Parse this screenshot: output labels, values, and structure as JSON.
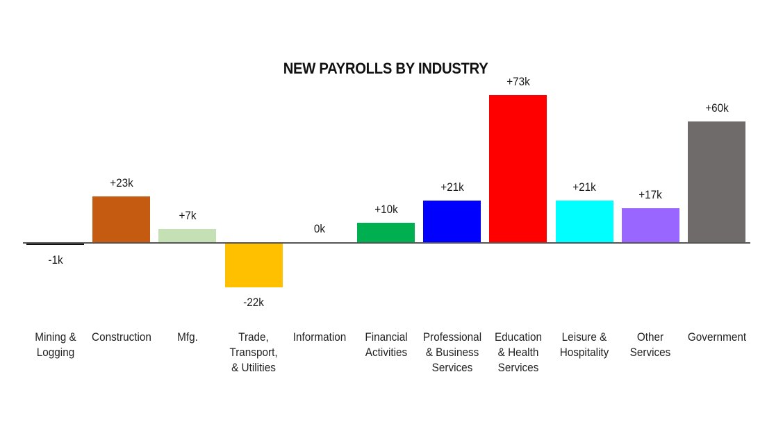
{
  "chart_data": {
    "type": "bar",
    "title": "NEW PAYROLLS BY INDUSTRY",
    "xlabel": "",
    "ylabel": "",
    "unit": "thousands of jobs",
    "grid": false,
    "legend": "none",
    "categories": [
      "Mining & Logging",
      "Construction",
      "Mfg.",
      "Trade, Transport, & Utilities",
      "Information",
      "Financial Activities",
      "Professional & Business Services",
      "Education & Health Services",
      "Leisure & Hospitality",
      "Other Services",
      "Government"
    ],
    "values": [
      -1,
      23,
      7,
      -22,
      0,
      10,
      21,
      73,
      21,
      17,
      60
    ],
    "data_labels": [
      "-1k",
      "+23k",
      "+7k",
      "-22k",
      "0k",
      "+10k",
      "+21k",
      "+73k",
      "+21k",
      "+17k",
      "+60k"
    ],
    "colors": [
      "#111111",
      "#C55A11",
      "#C5E0B4",
      "#FFC000",
      "#FFFFFF",
      "#00B050",
      "#0000FF",
      "#FF0000",
      "#00FFFF",
      "#9966FF",
      "#6F6B6B"
    ]
  },
  "labels": {
    "title": "NEW PAYROLLS BY INDUSTRY",
    "categories": [
      "Mining &\nLogging",
      "Construction",
      "Mfg.",
      "Trade,\nTransport,\n& Utilities",
      "Information",
      "Financial\nActivities",
      "Professional\n& Business\nServices",
      "Education\n& Health\nServices",
      "Leisure &\nHospitality",
      "Other\nServices",
      "Government"
    ]
  }
}
